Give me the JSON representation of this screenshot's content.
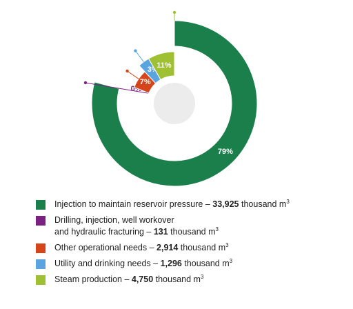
{
  "chart_data": {
    "type": "pie",
    "variant": "donut",
    "slices": [
      {
        "id": "injection",
        "percent_label": "79%",
        "color": "#1a7f4b",
        "value": 33925
      },
      {
        "id": "drilling",
        "percent_label": "0%",
        "color": "#7b2182",
        "value": 131
      },
      {
        "id": "operational",
        "percent_label": "7%",
        "color": "#d4451c",
        "value": 2914
      },
      {
        "id": "utility",
        "percent_label": "3%",
        "color": "#5aa5e0",
        "value": 1296
      },
      {
        "id": "steam",
        "percent_label": "11%",
        "color": "#9fc032",
        "value": 4750
      }
    ]
  },
  "legend": [
    {
      "line1": "Injection to maintain reservoir pressure – ",
      "line2": "",
      "bold": "33,925",
      "unit": " thousand m",
      "sup": "3",
      "color": "#1a7f4b"
    },
    {
      "line1": "Drilling, injection, well workover",
      "line2": "and hydraulic fracturing – ",
      "bold": "131",
      "unit": " thousand m",
      "sup": "3",
      "color": "#7b2182"
    },
    {
      "line1": "Other operational needs – ",
      "line2": "",
      "bold": "2,914",
      "unit": " thousand m",
      "sup": "3",
      "color": "#d4451c"
    },
    {
      "line1": "Utility and drinking needs – ",
      "line2": "",
      "bold": "1,296",
      "unit": " thousand m",
      "sup": "3",
      "color": "#5aa5e0"
    },
    {
      "line1": "Steam production – ",
      "line2": "",
      "bold": "4,750",
      "unit": " thousand m",
      "sup": "3",
      "color": "#9fc032"
    }
  ]
}
